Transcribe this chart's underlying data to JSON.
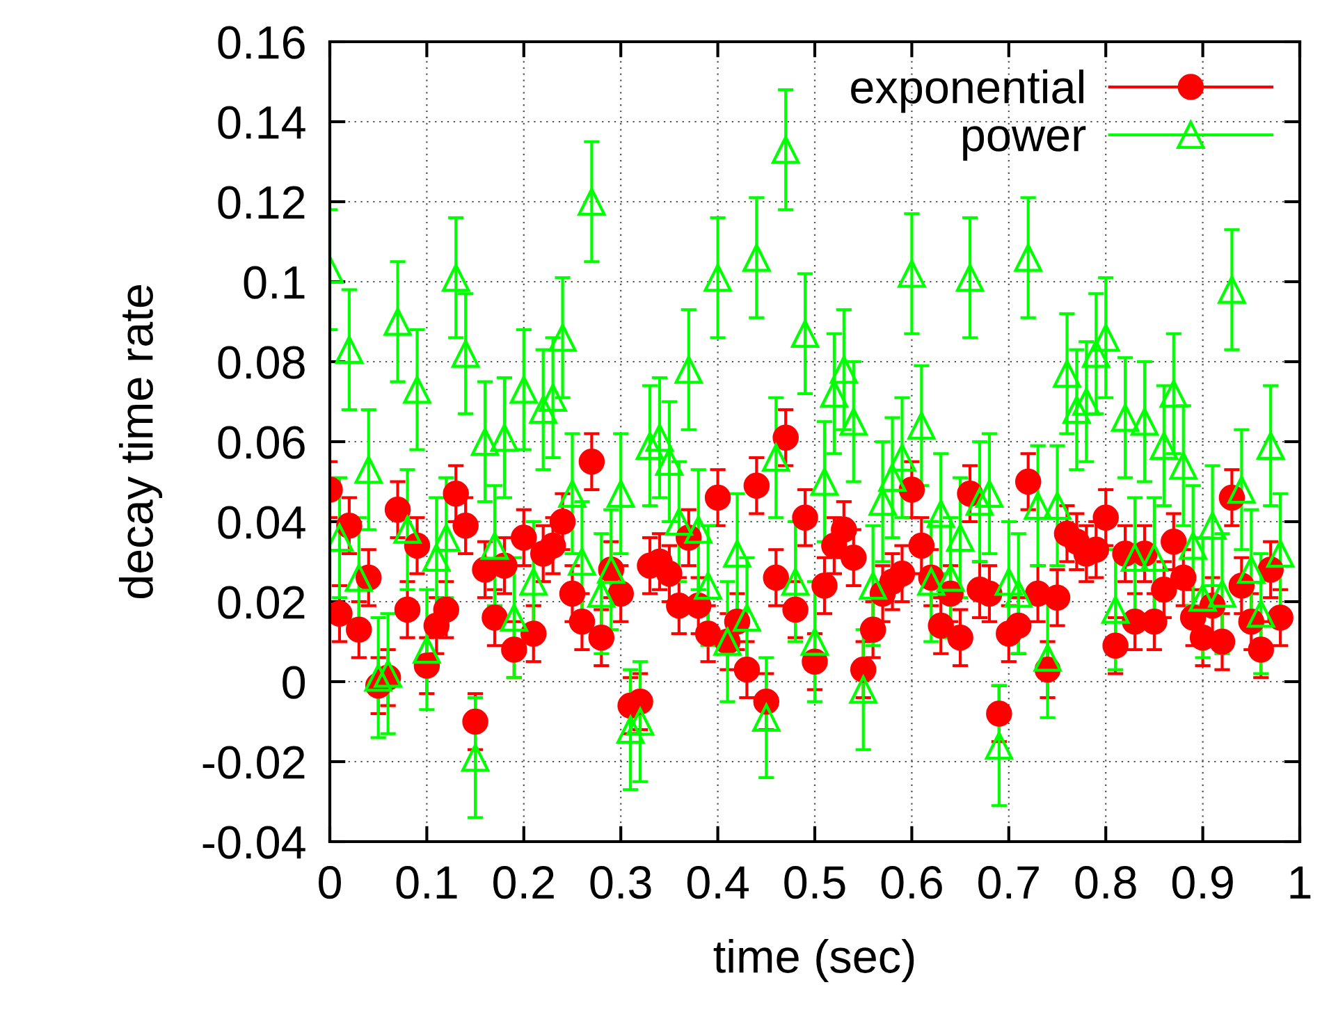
{
  "chart_data": {
    "type": "scatter",
    "xlabel": "time (sec)",
    "ylabel": "decay time rate",
    "xlim": [
      0,
      1
    ],
    "ylim": [
      -0.04,
      0.16
    ],
    "xticks": [
      0,
      0.1,
      0.2,
      0.3,
      0.4,
      0.5,
      0.6,
      0.7,
      0.8,
      0.9,
      1
    ],
    "yticks": [
      -0.04,
      -0.02,
      0,
      0.02,
      0.04,
      0.06,
      0.08,
      0.1,
      0.12,
      0.14,
      0.16
    ],
    "grid": true,
    "legend": "top right",
    "x": [
      0,
      0.01,
      0.02,
      0.03,
      0.04,
      0.05,
      0.06,
      0.07,
      0.08,
      0.09,
      0.1,
      0.11,
      0.12,
      0.13,
      0.14,
      0.15,
      0.16,
      0.17,
      0.18,
      0.19,
      0.2,
      0.21,
      0.22,
      0.23,
      0.24,
      0.25,
      0.26,
      0.27,
      0.28,
      0.29,
      0.3,
      0.31,
      0.32,
      0.33,
      0.34,
      0.35,
      0.36,
      0.37,
      0.38,
      0.39,
      0.4,
      0.41,
      0.42,
      0.43,
      0.44,
      0.45,
      0.46,
      0.47,
      0.48,
      0.49,
      0.5,
      0.51,
      0.52,
      0.53,
      0.54,
      0.55,
      0.56,
      0.57,
      0.58,
      0.59,
      0.6,
      0.61,
      0.62,
      0.63,
      0.64,
      0.65,
      0.66,
      0.67,
      0.68,
      0.69,
      0.7,
      0.71,
      0.72,
      0.73,
      0.74,
      0.75,
      0.76,
      0.77,
      0.78,
      0.79,
      0.8,
      0.81,
      0.82,
      0.83,
      0.84,
      0.85,
      0.86,
      0.87,
      0.88,
      0.89,
      0.9,
      0.91,
      0.92,
      0.93,
      0.94,
      0.95,
      0.96,
      0.97,
      0.98
    ],
    "series": [
      {
        "name": "exponential",
        "color": "#ff0000",
        "marker": "circle",
        "values": [
          0.048,
          0.017,
          0.039,
          0.013,
          0.026,
          -0.001,
          0.001,
          0.043,
          0.018,
          0.034,
          0.004,
          0.014,
          0.018,
          0.047,
          0.039,
          -0.01,
          0.028,
          0.016,
          0.029,
          0.008,
          0.036,
          0.012,
          0.032,
          0.034,
          0.04,
          0.022,
          0.015,
          0.055,
          0.011,
          0.028,
          0.022,
          -0.006,
          -0.005,
          0.029,
          0.03,
          0.027,
          0.019,
          0.036,
          0.019,
          0.012,
          0.046,
          0.01,
          0.015,
          0.003,
          0.049,
          -0.005,
          0.026,
          0.061,
          0.018,
          0.041,
          0.005,
          0.024,
          0.034,
          0.038,
          0.031,
          0.003,
          0.013,
          0.022,
          0.025,
          0.027,
          0.048,
          0.034,
          0.026,
          0.014,
          0.022,
          0.011,
          0.047,
          0.023,
          0.022,
          -0.008,
          0.012,
          0.014,
          0.05,
          0.022,
          0.003,
          0.021,
          0.037,
          0.035,
          0.032,
          0.033,
          0.041,
          0.009,
          0.032,
          0.015,
          0.032,
          0.015,
          0.023,
          0.035,
          0.026,
          0.016,
          0.011,
          0.019,
          0.01,
          0.046,
          0.024,
          0.015,
          0.008,
          0.028,
          0.016
        ],
        "errors": [
          0.007,
          0.007,
          0.007,
          0.007,
          0.007,
          0.007,
          0.007,
          0.007,
          0.007,
          0.007,
          0.007,
          0.007,
          0.007,
          0.007,
          0.007,
          0.007,
          0.007,
          0.007,
          0.007,
          0.007,
          0.007,
          0.007,
          0.007,
          0.007,
          0.007,
          0.007,
          0.007,
          0.007,
          0.007,
          0.007,
          0.007,
          0.007,
          0.007,
          0.007,
          0.007,
          0.007,
          0.007,
          0.007,
          0.007,
          0.007,
          0.007,
          0.007,
          0.007,
          0.007,
          0.007,
          0.007,
          0.007,
          0.007,
          0.007,
          0.007,
          0.007,
          0.007,
          0.007,
          0.007,
          0.007,
          0.007,
          0.007,
          0.007,
          0.007,
          0.007,
          0.007,
          0.007,
          0.007,
          0.007,
          0.007,
          0.007,
          0.007,
          0.007,
          0.007,
          0.007,
          0.007,
          0.007,
          0.007,
          0.007,
          0.007,
          0.007,
          0.007,
          0.007,
          0.007,
          0.007,
          0.007,
          0.007,
          0.007,
          0.007,
          0.007,
          0.007,
          0.007,
          0.007,
          0.007,
          0.007,
          0.007,
          0.007,
          0.007,
          0.007,
          0.007,
          0.007,
          0.007,
          0.007,
          0.007
        ]
      },
      {
        "name": "power",
        "color": "#00ff00",
        "marker": "triangle",
        "values": [
          0.103,
          0.036,
          0.083,
          0.026,
          0.053,
          0.001,
          0.002,
          0.09,
          0.038,
          0.073,
          0.008,
          0.031,
          0.036,
          0.101,
          0.082,
          -0.019,
          0.06,
          0.034,
          0.061,
          0.016,
          0.073,
          0.025,
          0.068,
          0.071,
          0.086,
          0.047,
          0.03,
          0.12,
          0.022,
          0.028,
          0.047,
          -0.012,
          -0.01,
          0.059,
          0.061,
          0.055,
          0.04,
          0.078,
          0.038,
          0.024,
          0.101,
          0.01,
          0.032,
          0.016,
          0.106,
          -0.009,
          0.056,
          0.133,
          0.025,
          0.087,
          0.01,
          0.05,
          0.072,
          0.078,
          0.065,
          -0.002,
          0.024,
          0.045,
          0.051,
          0.056,
          0.102,
          0.064,
          0.025,
          0.042,
          0.026,
          0.036,
          0.101,
          0.045,
          0.047,
          -0.016,
          0.025,
          0.022,
          0.106,
          0.044,
          0.006,
          0.044,
          0.077,
          0.068,
          0.07,
          0.082,
          0.086,
          0.018,
          0.066,
          0.031,
          0.065,
          0.031,
          0.059,
          0.072,
          0.054,
          0.034,
          0.021,
          0.039,
          0.022,
          0.098,
          0.048,
          0.028,
          0.017,
          0.059,
          0.032
        ],
        "errors": [
          0.015,
          0.015,
          0.015,
          0.015,
          0.015,
          0.015,
          0.015,
          0.015,
          0.015,
          0.015,
          0.015,
          0.015,
          0.015,
          0.015,
          0.015,
          0.015,
          0.015,
          0.015,
          0.015,
          0.015,
          0.015,
          0.015,
          0.015,
          0.015,
          0.015,
          0.015,
          0.015,
          0.015,
          0.015,
          0.015,
          0.015,
          0.015,
          0.015,
          0.015,
          0.015,
          0.015,
          0.015,
          0.015,
          0.015,
          0.015,
          0.015,
          0.015,
          0.015,
          0.015,
          0.015,
          0.015,
          0.015,
          0.015,
          0.015,
          0.015,
          0.015,
          0.015,
          0.015,
          0.015,
          0.015,
          0.015,
          0.015,
          0.015,
          0.015,
          0.015,
          0.015,
          0.015,
          0.015,
          0.015,
          0.015,
          0.015,
          0.015,
          0.015,
          0.015,
          0.015,
          0.015,
          0.015,
          0.015,
          0.015,
          0.015,
          0.015,
          0.015,
          0.015,
          0.015,
          0.015,
          0.015,
          0.015,
          0.015,
          0.015,
          0.015,
          0.015,
          0.015,
          0.015,
          0.015,
          0.015,
          0.015,
          0.015,
          0.015,
          0.015,
          0.015,
          0.015,
          0.015,
          0.015,
          0.015
        ]
      }
    ]
  }
}
